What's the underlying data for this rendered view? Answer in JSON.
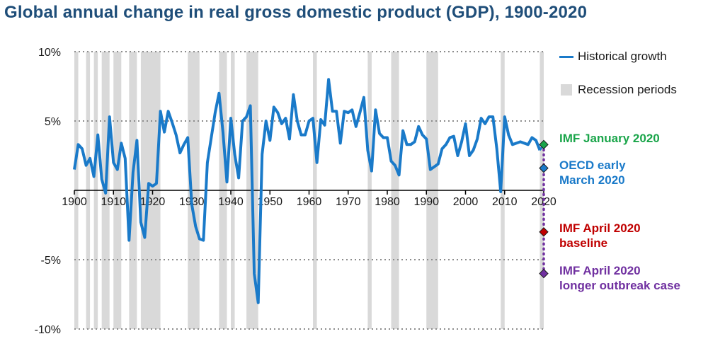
{
  "chart_data": {
    "type": "line",
    "title": "Global annual change in real gross domestic product (GDP), 1900-2020",
    "xlabel": "",
    "ylabel": "",
    "xlim": [
      1900,
      2020
    ],
    "ylim": [
      -10,
      10
    ],
    "yticks": [
      10,
      5,
      -5,
      -10
    ],
    "ytick_labels": [
      "10%",
      "5%",
      "-5%",
      "-10%"
    ],
    "xticks": [
      1900,
      1910,
      1920,
      1930,
      1940,
      1950,
      1960,
      1970,
      1980,
      1990,
      2000,
      2010,
      2020
    ],
    "xtick_labels": [
      "1900",
      "1910",
      "1920",
      "1930",
      "1940",
      "1950",
      "1960",
      "1970",
      "1980",
      "1990",
      "2000",
      "2010",
      "2020"
    ],
    "gridlines": "horizontal-dotted",
    "legend": {
      "placement": "top-right",
      "items": [
        {
          "label": "Historical growth",
          "kind": "line",
          "color": "#1a7ac9"
        },
        {
          "label": "Recession periods",
          "kind": "box",
          "color": "#d9d9d9"
        }
      ]
    },
    "series": [
      {
        "name": "Historical growth",
        "color": "#1a7ac9",
        "x": [
          1900,
          1901,
          1902,
          1903,
          1904,
          1905,
          1906,
          1907,
          1908,
          1909,
          1910,
          1911,
          1912,
          1913,
          1914,
          1915,
          1916,
          1917,
          1918,
          1919,
          1920,
          1921,
          1922,
          1923,
          1924,
          1925,
          1926,
          1927,
          1928,
          1929,
          1930,
          1931,
          1932,
          1933,
          1934,
          1935,
          1936,
          1937,
          1938,
          1939,
          1940,
          1941,
          1942,
          1943,
          1944,
          1945,
          1946,
          1947,
          1948,
          1949,
          1950,
          1951,
          1952,
          1953,
          1954,
          1955,
          1956,
          1957,
          1958,
          1959,
          1960,
          1961,
          1962,
          1963,
          1964,
          1965,
          1966,
          1967,
          1968,
          1969,
          1970,
          1971,
          1972,
          1973,
          1974,
          1975,
          1976,
          1977,
          1978,
          1979,
          1980,
          1981,
          1982,
          1983,
          1984,
          1985,
          1986,
          1987,
          1988,
          1989,
          1990,
          1991,
          1992,
          1993,
          1994,
          1995,
          1996,
          1997,
          1998,
          1999,
          2000,
          2001,
          2002,
          2003,
          2004,
          2005,
          2006,
          2007,
          2008,
          2009,
          2010,
          2011,
          2012,
          2013,
          2014,
          2015,
          2016,
          2017,
          2018,
          2019
        ],
        "values": [
          1.5,
          3.3,
          3.0,
          1.8,
          2.3,
          1.0,
          4.0,
          0.8,
          -0.2,
          5.3,
          2.0,
          1.5,
          3.4,
          2.3,
          -3.6,
          1.3,
          3.6,
          -2.3,
          -3.4,
          0.5,
          0.3,
          0.5,
          5.7,
          4.2,
          5.7,
          4.9,
          4.0,
          2.7,
          3.3,
          3.8,
          -1.0,
          -2.6,
          -3.5,
          -3.6,
          2.0,
          3.8,
          5.6,
          7.0,
          4.2,
          0.6,
          5.2,
          2.6,
          0.9,
          5.0,
          5.3,
          6.1,
          -6.0,
          -8.1,
          2.6,
          5.0,
          3.6,
          6.0,
          5.6,
          4.8,
          5.2,
          3.7,
          6.9,
          5.0,
          4.0,
          4.0,
          5.0,
          5.2,
          2.0,
          5.1,
          4.7,
          8.0,
          5.7,
          5.7,
          3.4,
          5.7,
          5.6,
          5.8,
          4.6,
          5.6,
          6.7,
          2.9,
          1.4,
          5.8,
          4.1,
          3.8,
          3.8,
          2.1,
          1.8,
          1.1,
          4.3,
          3.3,
          3.3,
          3.5,
          4.6,
          4.0,
          3.7,
          1.5,
          1.7,
          1.9,
          3.0,
          3.3,
          3.8,
          3.9,
          2.5,
          3.5,
          4.8,
          2.5,
          2.9,
          3.7,
          5.2,
          4.8,
          5.3,
          5.3,
          3.0,
          -0.1,
          5.3,
          4.0,
          3.3,
          3.4,
          3.5,
          3.4,
          3.3,
          3.8,
          3.6,
          2.9
        ]
      }
    ],
    "recession_periods": [
      [
        1900,
        1901
      ],
      [
        1903,
        1904
      ],
      [
        1905,
        1906
      ],
      [
        1907,
        1909
      ],
      [
        1910,
        1912
      ],
      [
        1914,
        1916
      ],
      [
        1917,
        1922
      ],
      [
        1929,
        1932
      ],
      [
        1937,
        1939
      ],
      [
        1940,
        1941
      ],
      [
        1944,
        1947
      ],
      [
        1961,
        1962
      ],
      [
        1975,
        1976
      ],
      [
        1981,
        1983
      ],
      [
        1990,
        1993
      ],
      [
        2009,
        2010
      ],
      [
        2019,
        2020
      ]
    ],
    "forecasts_2020": [
      {
        "label_lines": [
          "IMF January 2020"
        ],
        "value": 3.3,
        "color": "#1aa54a"
      },
      {
        "label_lines": [
          "OECD early",
          "March 2020"
        ],
        "value": 1.6,
        "color": "#1a7ac9"
      },
      {
        "label_lines": [
          "IMF April 2020",
          "baseline"
        ],
        "value": -3.0,
        "color": "#c00000"
      },
      {
        "label_lines": [
          "IMF April 2020",
          "longer outbreak case"
        ],
        "value": -6.0,
        "color": "#7030a0"
      }
    ],
    "forecast_connector_color": "#7030a0"
  }
}
